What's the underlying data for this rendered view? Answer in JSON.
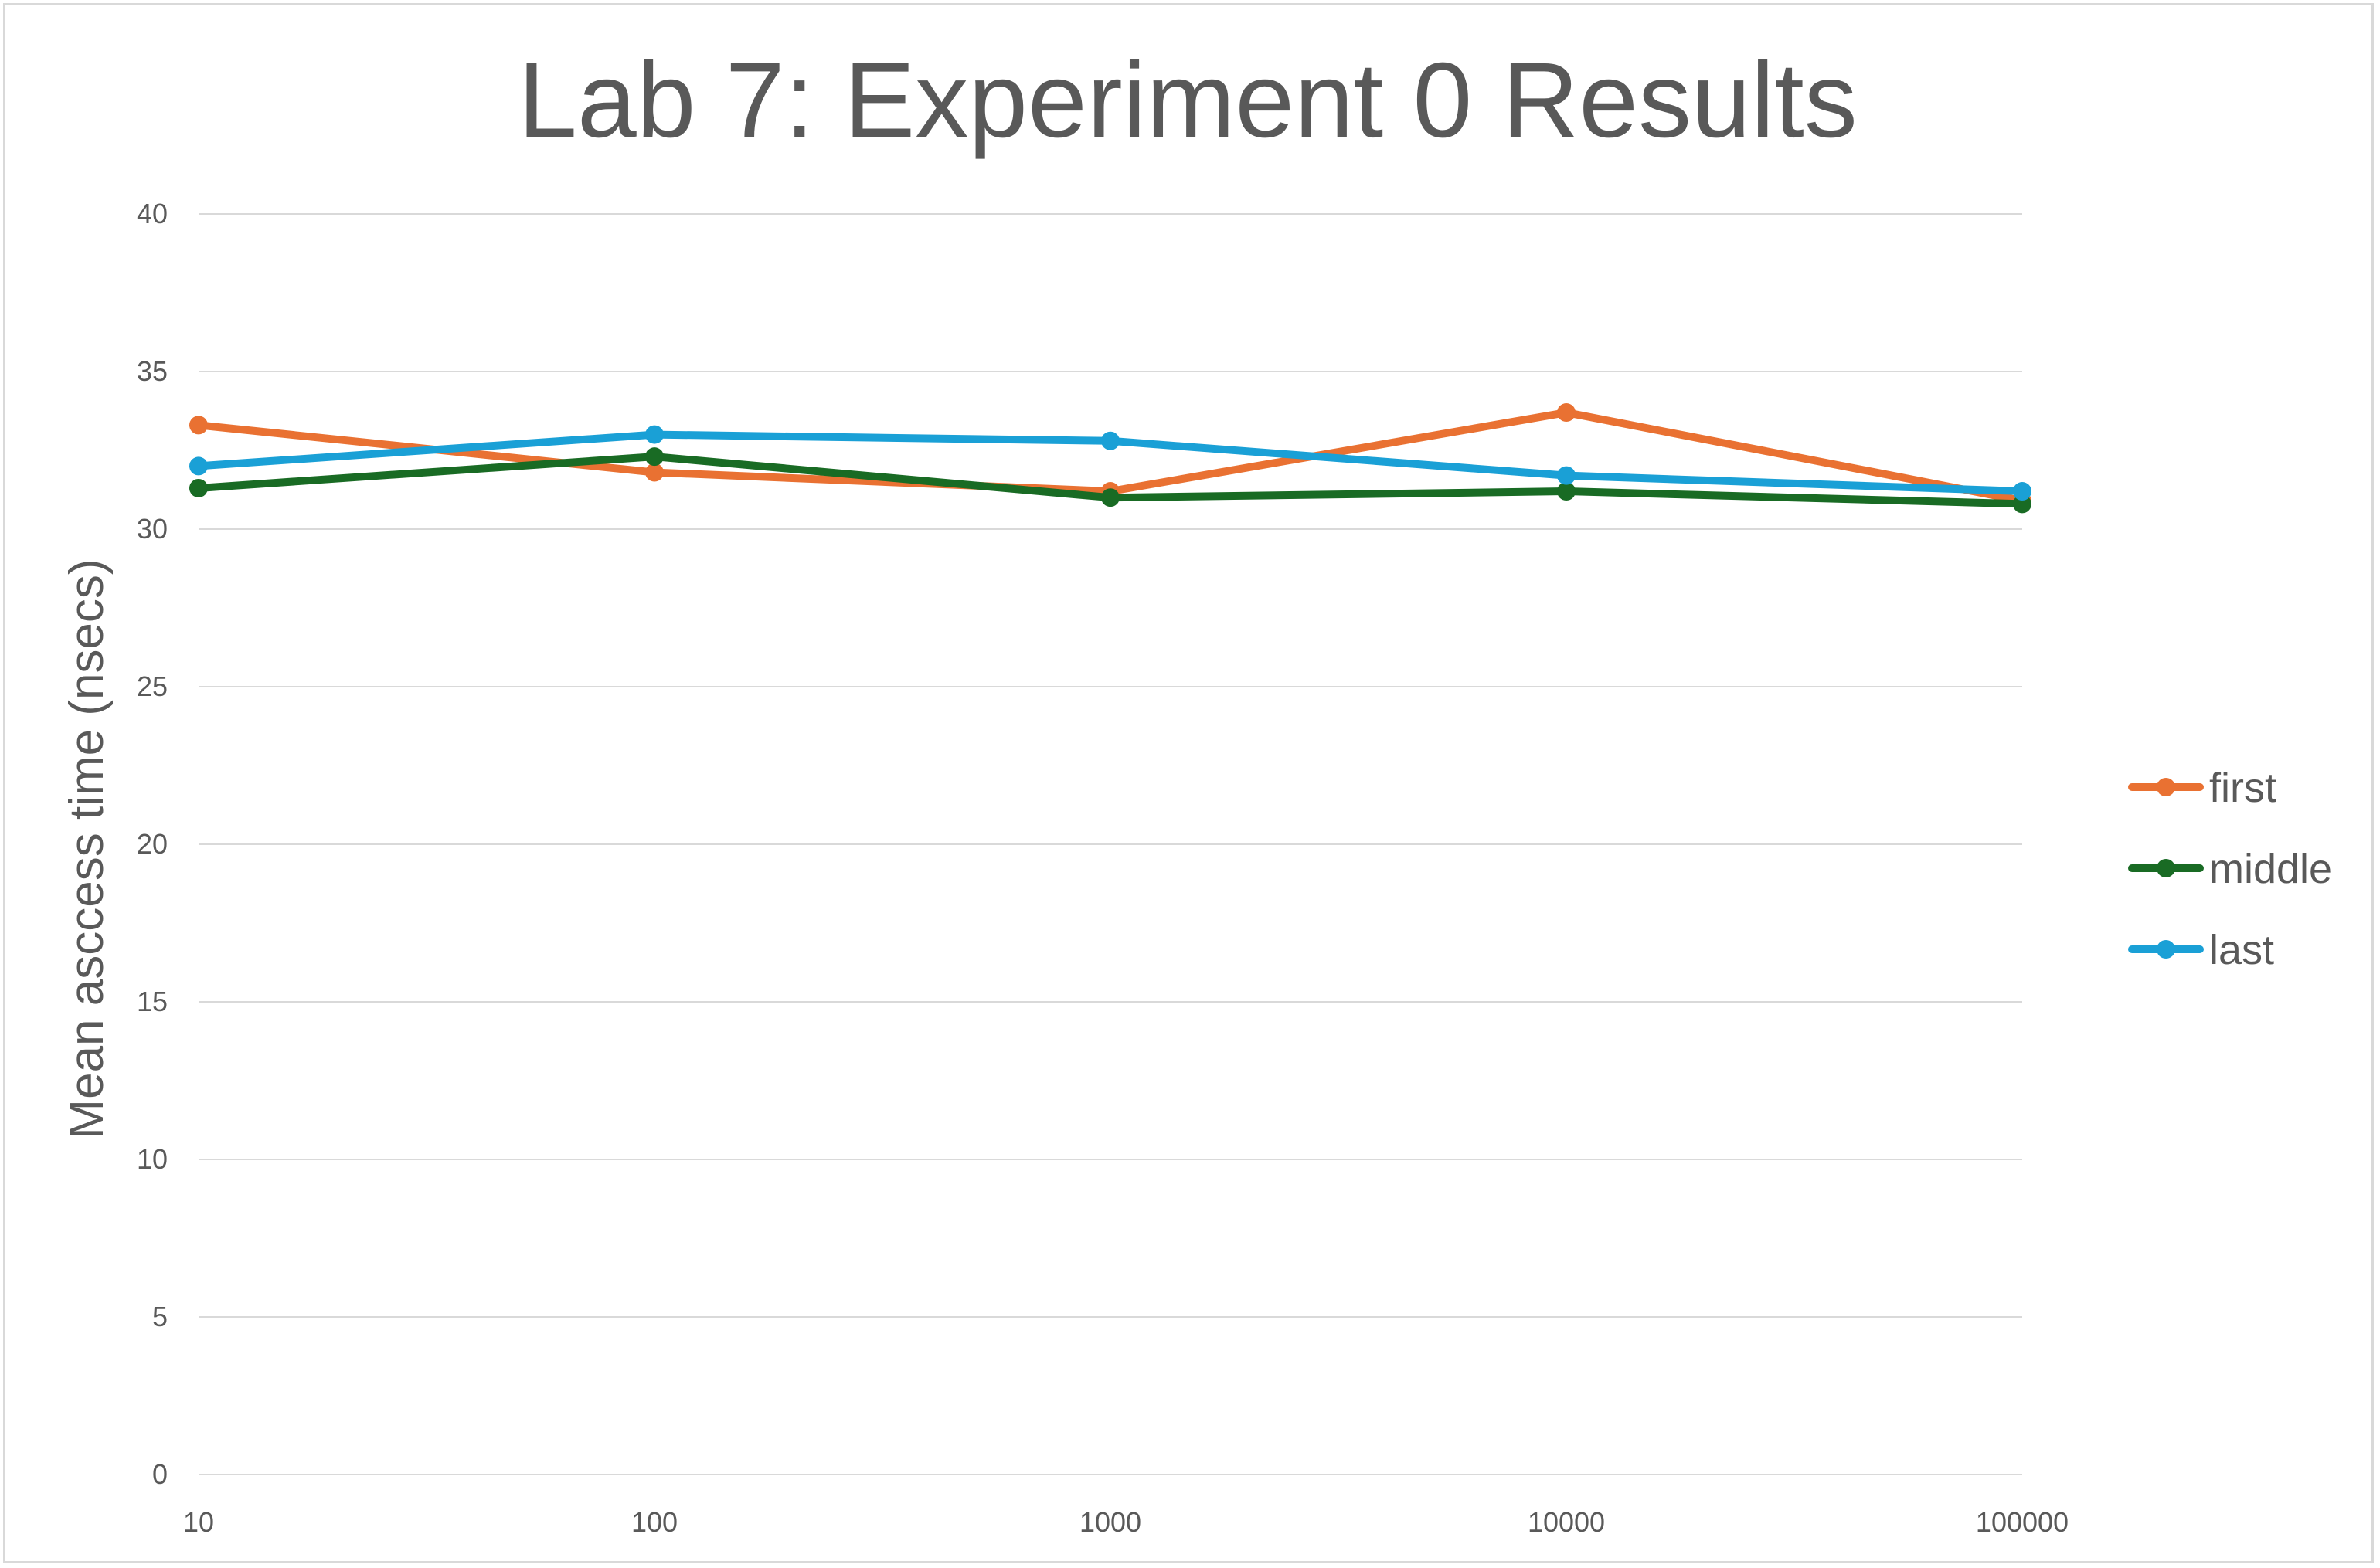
{
  "chart_data": {
    "type": "line",
    "title": "Lab 7: Experiment 0 Results",
    "xlabel": "",
    "ylabel": "Mean asccess time (nsecs)",
    "categories": [
      "10",
      "100",
      "1000",
      "10000",
      "100000"
    ],
    "ylim": [
      0,
      40
    ],
    "yticks": [
      0,
      5,
      10,
      15,
      20,
      25,
      30,
      35,
      40
    ],
    "grid": true,
    "legend": "right",
    "series": [
      {
        "name": "first",
        "color": "#e97132",
        "values": [
          33.3,
          31.8,
          31.2,
          33.7,
          30.9
        ]
      },
      {
        "name": "middle",
        "color": "#196b24",
        "values": [
          31.3,
          32.3,
          31.0,
          31.2,
          30.8
        ]
      },
      {
        "name": "last",
        "color": "#1aa0d6",
        "values": [
          32.0,
          33.0,
          32.8,
          31.7,
          31.2
        ]
      }
    ],
    "gridline_color": "#d9d9d9",
    "text_color": "#595959"
  }
}
